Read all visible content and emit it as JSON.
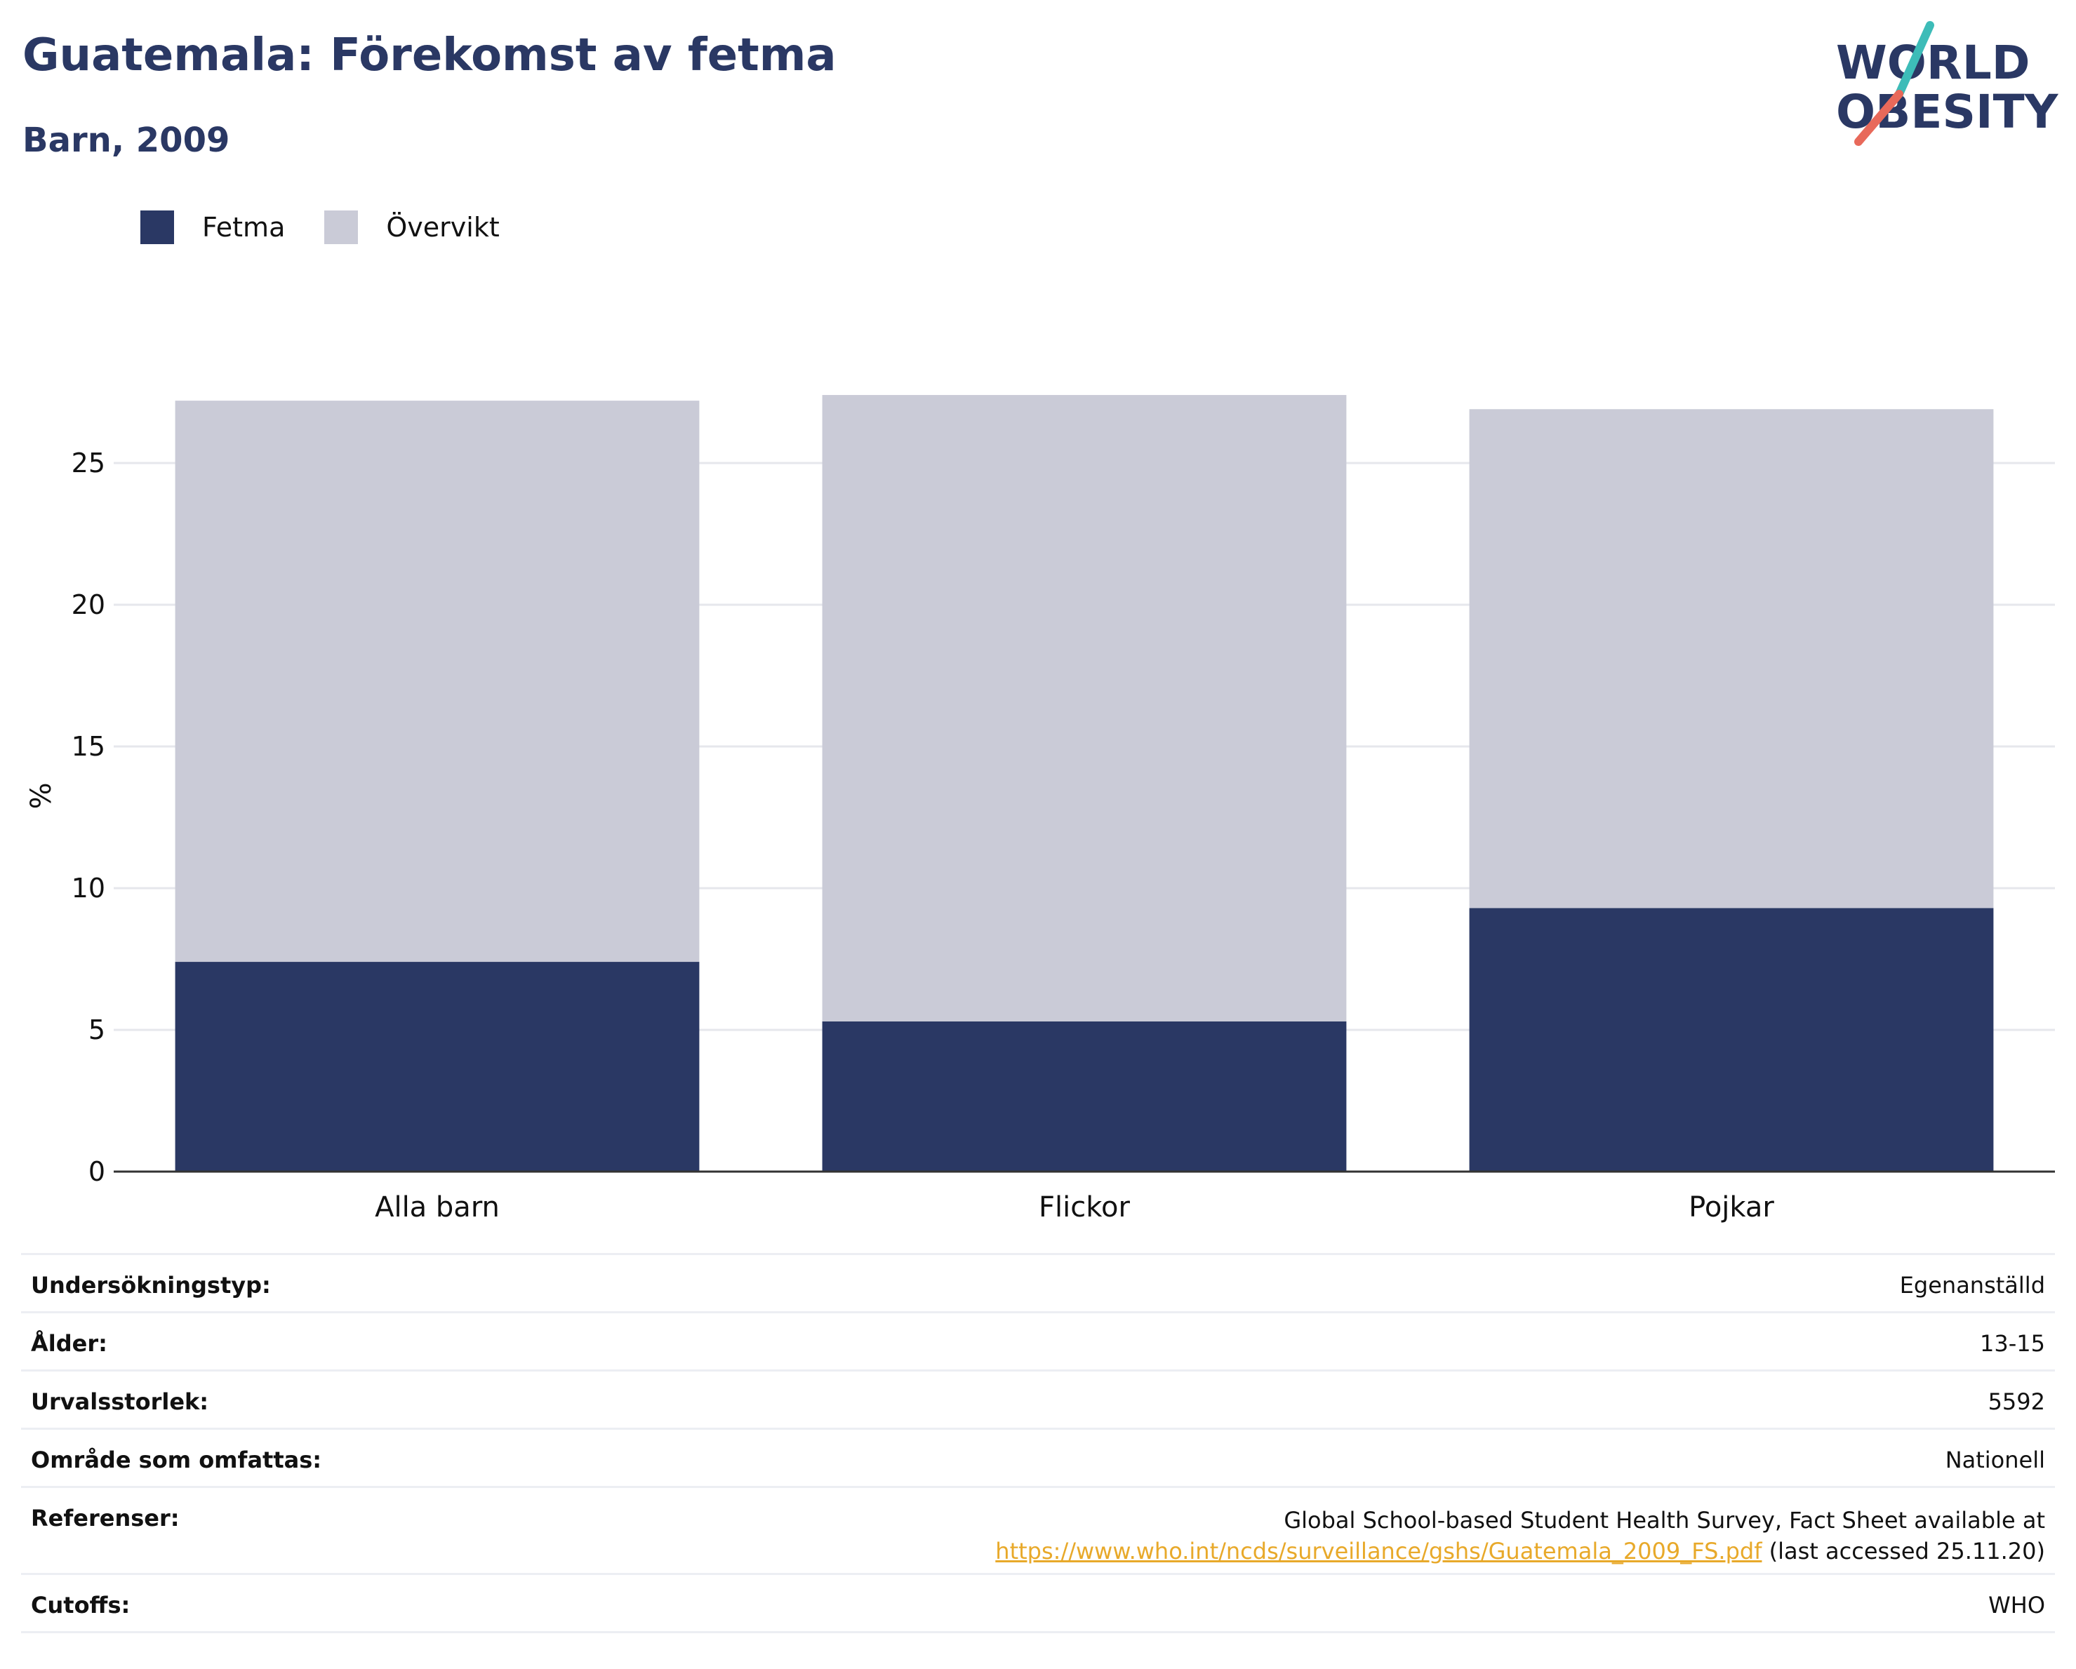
{
  "header": {
    "title": "Guatemala: Förekomst av fetma",
    "subtitle": "Barn, 2009"
  },
  "logo": {
    "line1": "WORLD",
    "line2": "OBESITY",
    "accent_teal": "#3dbcb8",
    "accent_red": "#e8695a",
    "text_color": "#2a3864"
  },
  "legend": [
    {
      "label": "Fetma",
      "color": "#2a3864"
    },
    {
      "label": "Övervikt",
      "color": "#cacbd7"
    }
  ],
  "chart_data": {
    "type": "bar",
    "stacked": true,
    "categories": [
      "Alla barn",
      "Flickor",
      "Pojkar"
    ],
    "series": [
      {
        "name": "Fetma",
        "color": "#2a3864",
        "values": [
          7.4,
          5.3,
          9.3
        ]
      },
      {
        "name": "Övervikt",
        "color": "#cacbd7",
        "values": [
          19.8,
          22.1,
          17.6
        ]
      }
    ],
    "ylabel": "%",
    "ylim": [
      0,
      28
    ],
    "yticks": [
      0,
      5,
      10,
      15,
      20,
      25
    ],
    "grid": true,
    "legend_position": "top-left"
  },
  "info": {
    "rows": [
      {
        "key": "Undersökningstyp:",
        "value": "Egenanställd"
      },
      {
        "key": "Ålder:",
        "value": "13-15"
      },
      {
        "key": "Urvalsstorlek:",
        "value": "5592"
      },
      {
        "key": "Område som omfattas:",
        "value": "Nationell"
      },
      {
        "key": "Cutoffs:",
        "value": "WHO"
      }
    ],
    "references": {
      "key": "Referenser:",
      "line1": "Global School-based Student Health Survey, Fact Sheet available at",
      "link": "https://www.who.int/ncds/surveillance/gshs/Guatemala_2009_FS.pdf",
      "suffix": " (last accessed 25.11.20)"
    }
  }
}
